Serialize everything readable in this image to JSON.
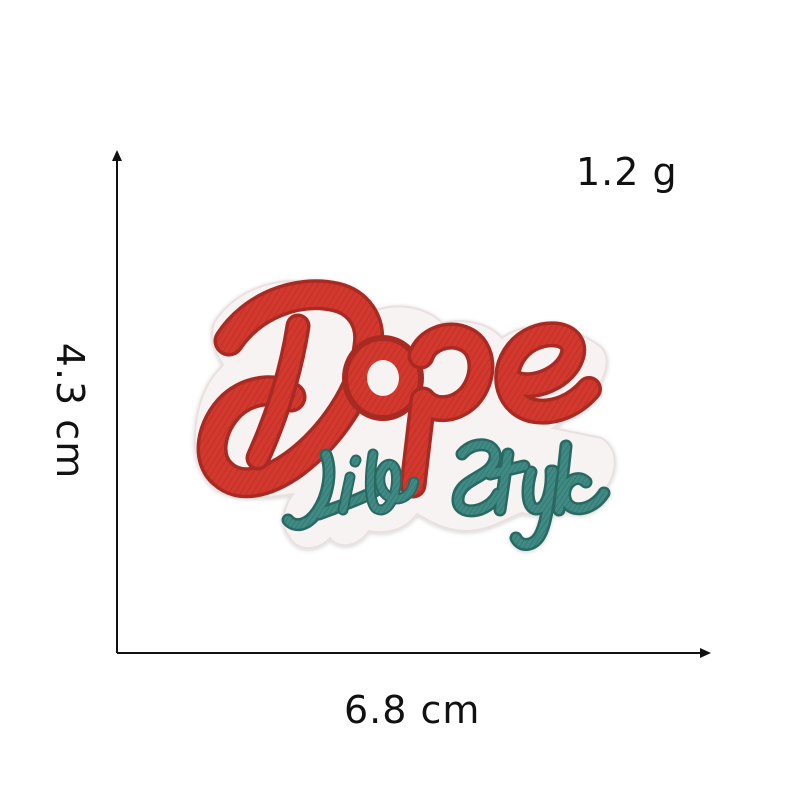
{
  "product": {
    "weight": "1.2 g",
    "width": "6.8 cm",
    "height": "4.3 cm",
    "patch_text_main": "Dope",
    "patch_text_sub": "Life Style"
  },
  "colors": {
    "background": "#ffffff",
    "axis": "#111111",
    "patch_red": "#d3382d",
    "patch_red_dark": "#a92a23",
    "patch_teal": "#3f8a84",
    "patch_teal_dark": "#2c6762",
    "patch_backing": "#f7f3f2"
  },
  "icons": {
    "axis": "arrow-axis-icon",
    "patch": "embroidered-patch-icon"
  }
}
